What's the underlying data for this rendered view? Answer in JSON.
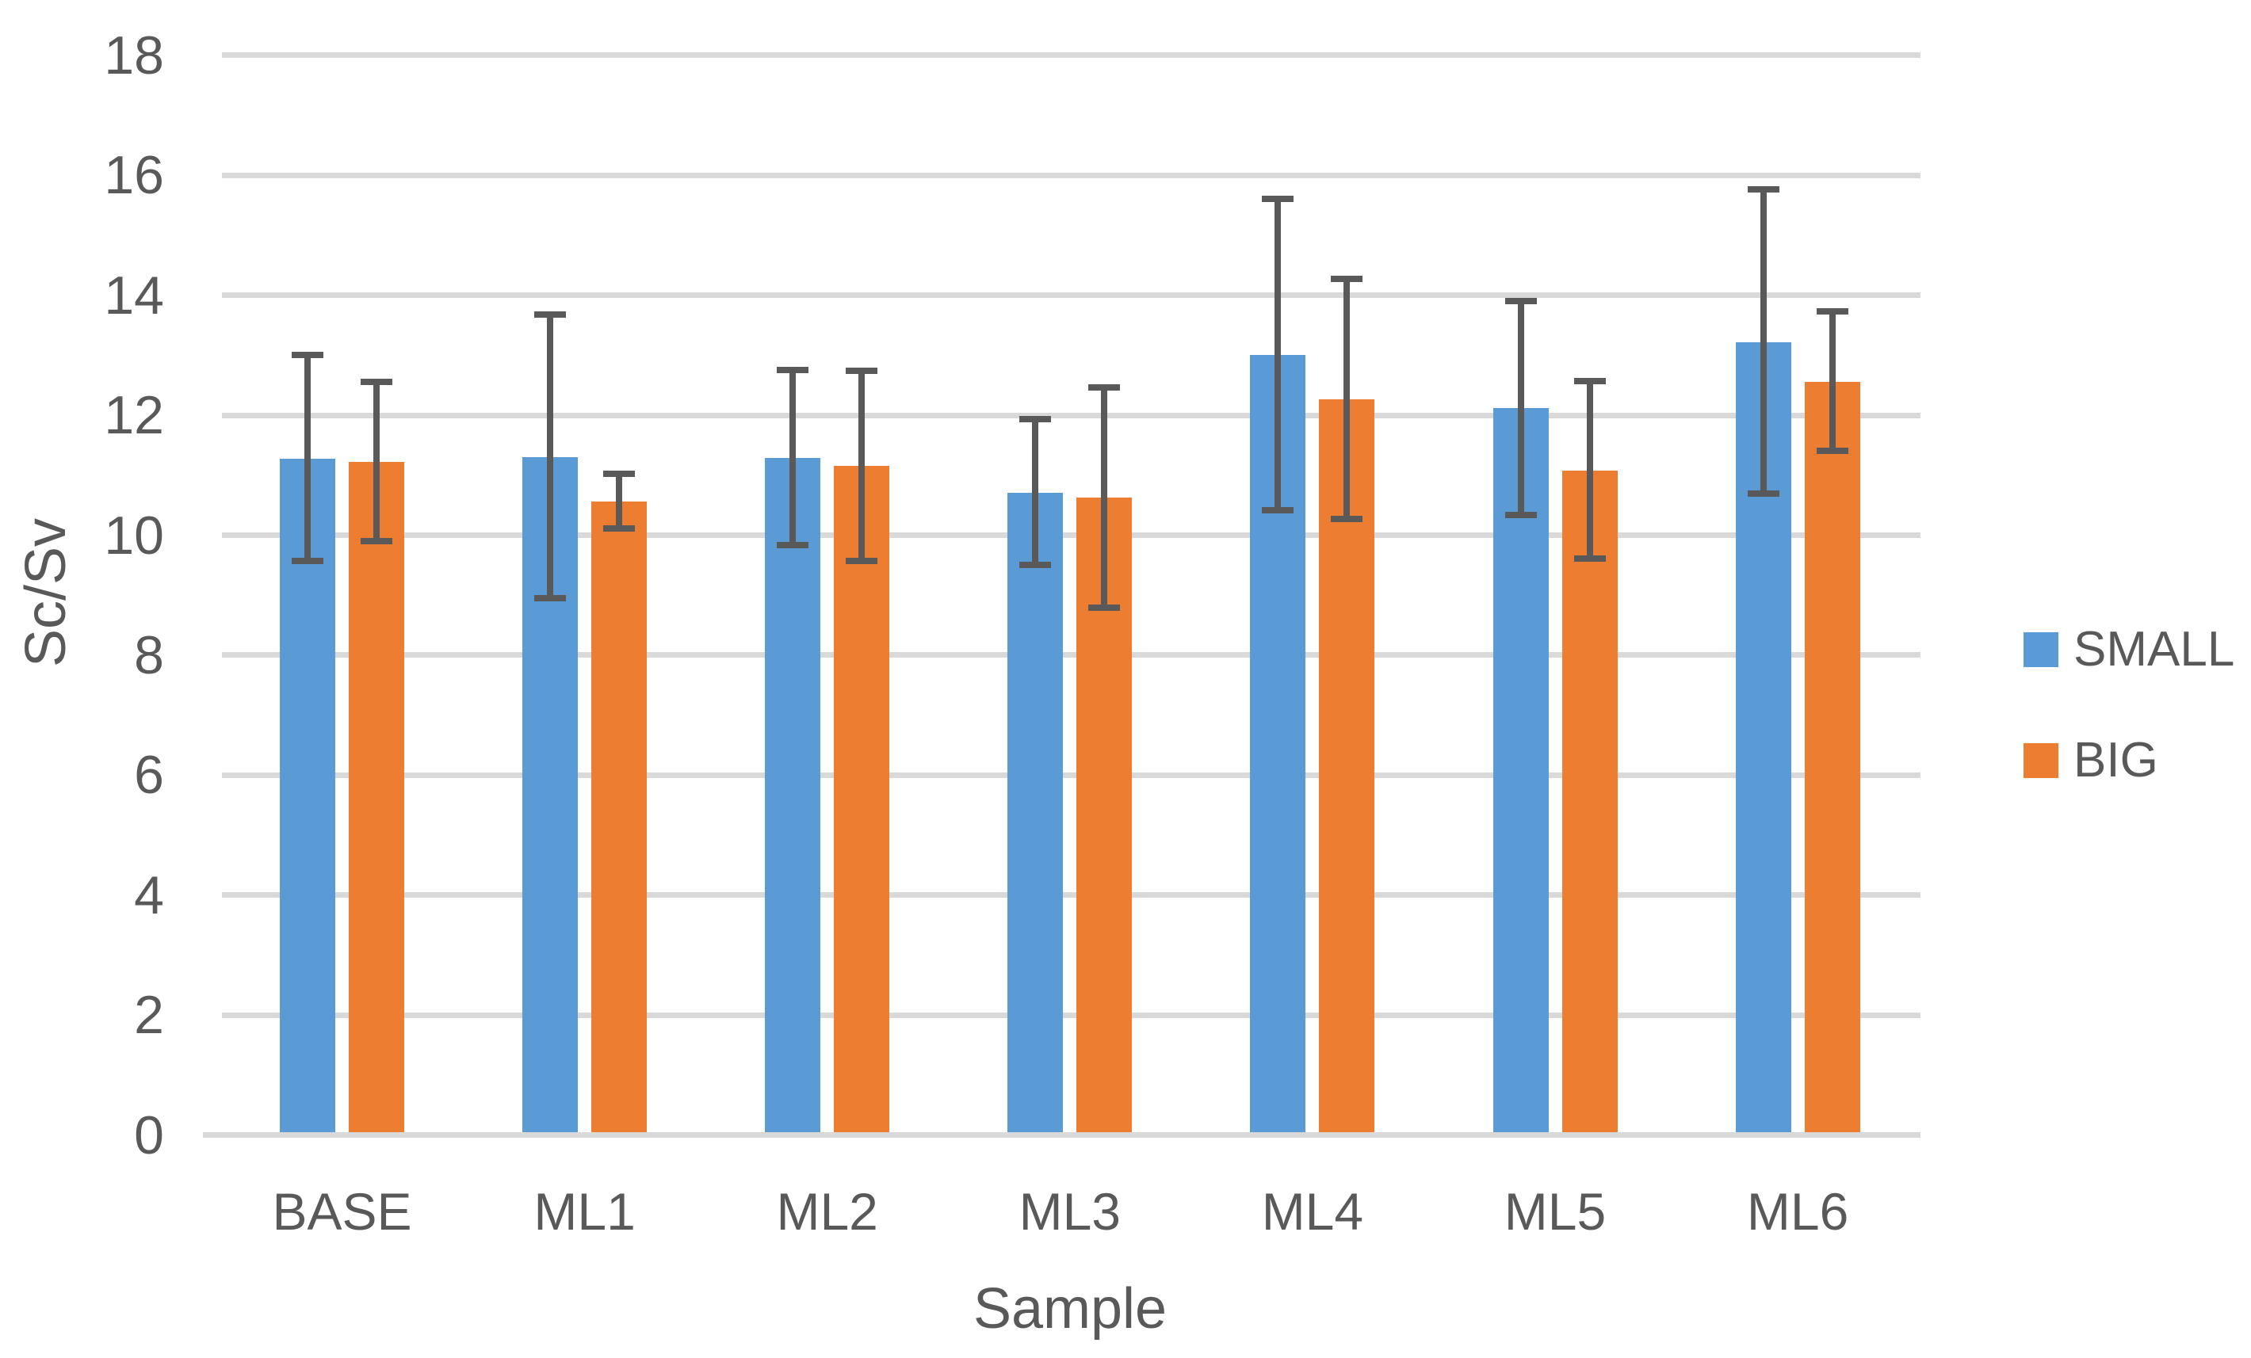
{
  "chart_data": {
    "type": "bar",
    "title": "",
    "xlabel": "Sample",
    "ylabel": "Sc/Sv",
    "categories": [
      "BASE",
      "ML1",
      "ML2",
      "ML3",
      "ML4",
      "ML5",
      "ML6"
    ],
    "series": [
      {
        "name": "SMALL",
        "color": "#5B9BD5",
        "values": [
          11.27,
          11.3,
          11.29,
          10.71,
          13.0,
          12.12,
          13.22
        ],
        "error_upper": [
          13.01,
          13.68,
          12.75,
          11.93,
          15.61,
          13.9,
          15.76
        ],
        "error_lower": [
          9.57,
          8.95,
          9.83,
          9.5,
          10.42,
          10.34,
          10.7
        ]
      },
      {
        "name": "BIG",
        "color": "#ED7D31",
        "values": [
          11.22,
          10.56,
          11.15,
          10.63,
          12.26,
          11.08,
          12.56
        ],
        "error_upper": [
          12.55,
          11.02,
          12.74,
          12.46,
          14.27,
          12.57,
          13.73
        ],
        "error_lower": [
          9.9,
          10.11,
          9.57,
          8.79,
          10.27,
          9.61,
          11.41
        ]
      }
    ],
    "ylim": [
      0,
      18
    ],
    "yticks": [
      0,
      2,
      4,
      6,
      8,
      10,
      12,
      14,
      16,
      18
    ],
    "ytick_labels": [
      "0",
      "2",
      "4",
      "6",
      "8",
      "10",
      "12",
      "14",
      "16",
      "18"
    ],
    "grid": "horizontal",
    "legend_position": "right",
    "gridline_color": "#D9D9D9",
    "axis_line_color": "#D9D9D9",
    "error_bar_color": "#595959",
    "text_color": "#595959",
    "background_color": "#FFFFFF"
  }
}
